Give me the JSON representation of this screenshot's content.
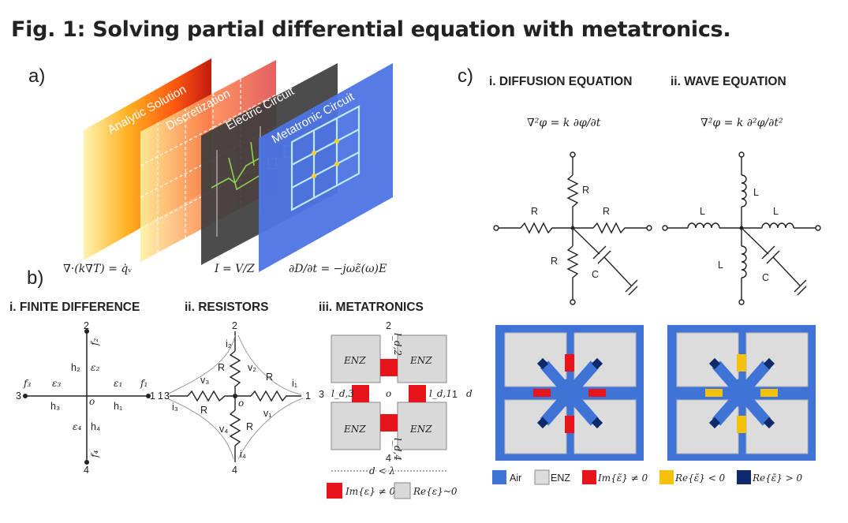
{
  "figure_title": "Fig. 1: Solving partial differential equation with metatronics.",
  "panels": {
    "a": {
      "letter": "a)",
      "layers": [
        "Analytic Solution",
        "Discretization",
        "Electric Circuit",
        "Metatronic Circuit"
      ],
      "equations": [
        "∇·(k∇T) = q̇ᵥ",
        "I = V/Z",
        "∂D/∂t = −jωε̃(ω)E"
      ]
    },
    "b": {
      "letter": "b)",
      "sub_i": "i. FINITE DIFFERENCE",
      "sub_ii": "ii. RESISTORS",
      "sub_iii": "iii.  METATRONICS",
      "fd": {
        "node_labels": [
          "1",
          "2",
          "3",
          "4",
          "o"
        ],
        "f_labels": [
          "f₁",
          "f₂",
          "f₃",
          "f₄"
        ],
        "h_labels": [
          "h₁",
          "h₂",
          "h₃",
          "h₄",
          "h₁"
        ],
        "eps_labels": [
          "ε₁",
          "ε₂",
          "ε₃",
          "ε₄"
        ]
      },
      "res": {
        "R": "R",
        "v_labels": [
          "v₁",
          "v₂",
          "v₃",
          "v₄"
        ],
        "i_labels": [
          "i₁",
          "i₂",
          "i₃",
          "i₄"
        ],
        "node_labels": [
          "1",
          "2",
          "3",
          "4",
          "o"
        ]
      },
      "meta": {
        "enz": "ENZ",
        "d_lambda": "d < λ",
        "d": "d",
        "l_labels": [
          "l_d,1",
          "l_d,2",
          "l_d,3",
          "l_d,4"
        ],
        "node_labels": [
          "1",
          "2",
          "3",
          "4",
          "o"
        ],
        "legend": [
          {
            "label": "Im{ε} ≠ 0",
            "color": "#e8141c"
          },
          {
            "label": "Re{ε}~0",
            "color": "#d9d9d9"
          }
        ]
      }
    },
    "c": {
      "letter": "c)",
      "sub_i": "i. DIFFUSION EQUATION",
      "sub_ii": "ii. WAVE EQUATION",
      "eq_i": "∇²φ = k ∂φ/∂t",
      "eq_ii": "∇²φ = k ∂²φ/∂t²",
      "R": "R",
      "L": "L",
      "C": "C",
      "legend": [
        {
          "label": "Air",
          "color": "#3f74d6"
        },
        {
          "label": "ENZ",
          "color": "#dcdcdc"
        },
        {
          "label": "Im{ε̃} ≠ 0",
          "color": "#e8141c"
        },
        {
          "label": "Re{ε̃} < 0",
          "color": "#f4c20d"
        },
        {
          "label": "Re{ε̃} > 0",
          "color": "#0e2a6b"
        }
      ]
    }
  }
}
